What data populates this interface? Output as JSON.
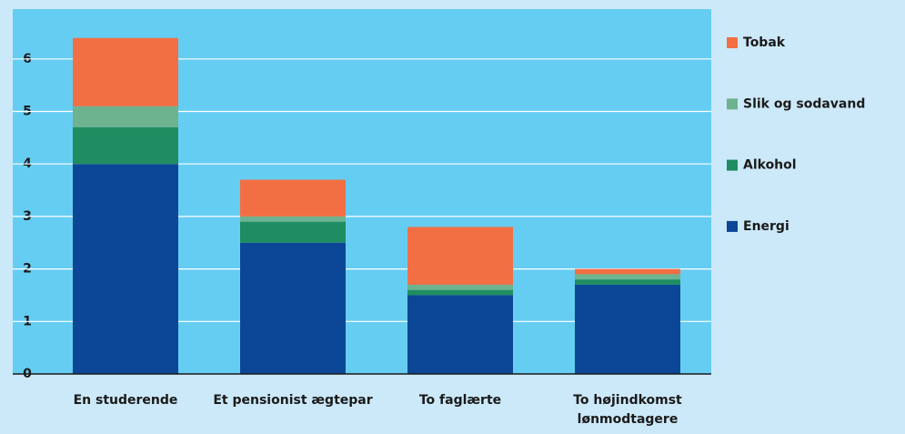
{
  "chart_data": {
    "type": "stacked_bar",
    "categories": [
      "En studerende",
      "Et pensionist ægtepar",
      "To faglærte",
      "To højindkomst lønmodtagere"
    ],
    "series": [
      {
        "name": "Energi",
        "color": "#0b4796",
        "values": [
          4.0,
          2.5,
          1.5,
          1.7
        ]
      },
      {
        "name": "Alkohol",
        "color": "#1f8d61",
        "values": [
          0.7,
          0.4,
          0.1,
          0.1
        ]
      },
      {
        "name": "Slik og sodavand",
        "color": "#6db38f",
        "values": [
          0.4,
          0.1,
          0.1,
          0.1
        ]
      },
      {
        "name": "Tobak",
        "color": "#f26f44",
        "values": [
          1.3,
          0.7,
          1.1,
          0.1
        ]
      }
    ],
    "ylim": [
      0,
      6.95
    ],
    "yticks": [
      0,
      1,
      2,
      3,
      4,
      5,
      6
    ],
    "grid": true,
    "legend": "right"
  }
}
